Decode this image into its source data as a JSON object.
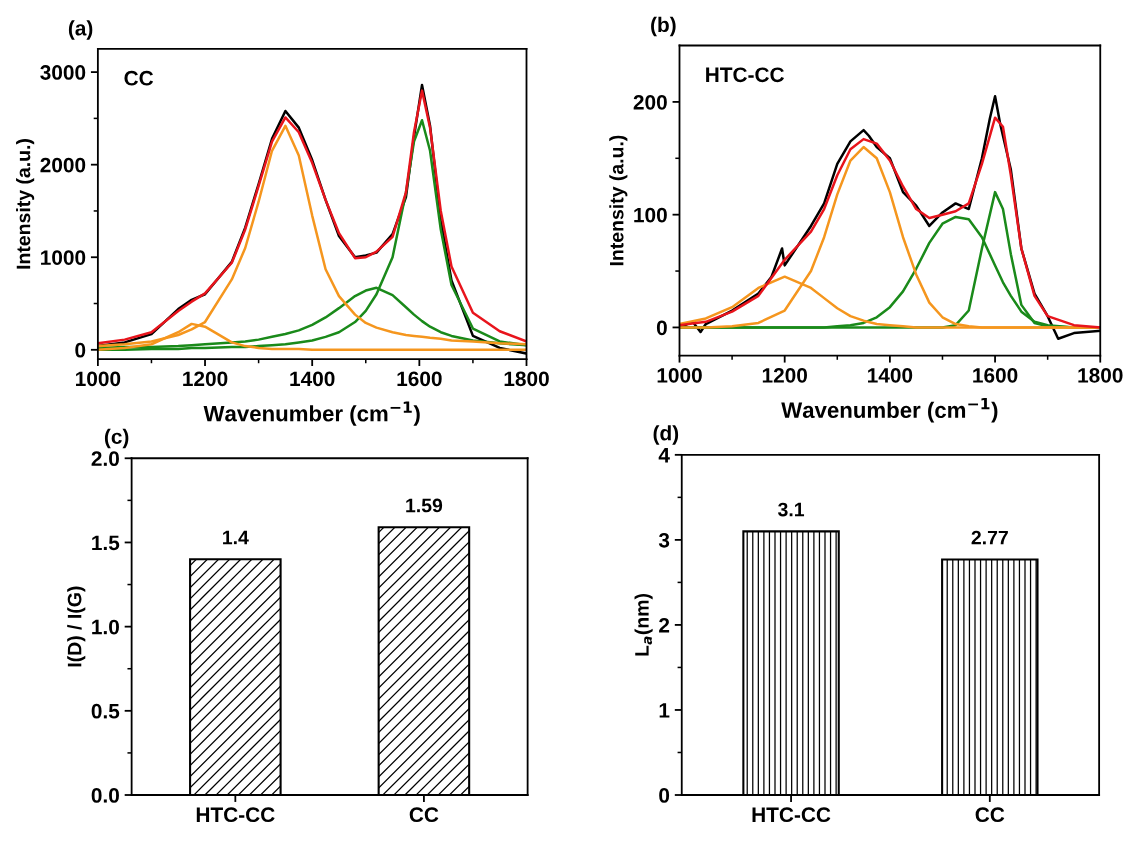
{
  "chart_data": [
    {
      "type": "line",
      "title": "(a)",
      "xlabel": "Wavenumber (cm$^{−1}$)",
      "ylabel": "Intensity (a.u.)",
      "annotations": [
        "CC"
      ],
      "xlim": [
        1000,
        1800
      ],
      "xticks": [
        1000,
        {
          "value": 1100,
          "label": null
        },
        1200,
        {
          "value": 1300,
          "label": null
        },
        1400,
        {
          "value": 1500,
          "label": null
        },
        1600,
        {
          "value": 1700,
          "label": null
        },
        1800
      ],
      "ylim": [
        -100,
        3250
      ],
      "yticks": [
        0,
        {
          "value": 500,
          "label": null
        },
        1000,
        {
          "value": 1500,
          "label": null
        },
        2000,
        {
          "value": 2500,
          "label": null
        },
        3000
      ],
      "x": [
        1000,
        1050,
        1100,
        1150,
        1175,
        1200,
        1250,
        1275,
        1300,
        1325,
        1350,
        1375,
        1400,
        1425,
        1450,
        1480,
        1500,
        1520,
        1550,
        1575,
        1590,
        1605,
        1620,
        1640,
        1660,
        1700,
        1750,
        1800
      ],
      "series": [
        {
          "color": "#000000",
          "values": [
            40,
            80,
            170,
            440,
            540,
            600,
            950,
            1320,
            1790,
            2280,
            2580,
            2400,
            2050,
            1620,
            1230,
            1000,
            1020,
            1050,
            1250,
            1650,
            2300,
            2860,
            2420,
            1400,
            750,
            150,
            20,
            -40
          ]
        },
        {
          "color": "#1a8a1a",
          "values": [
            0,
            0,
            10,
            10,
            20,
            20,
            30,
            30,
            40,
            50,
            60,
            80,
            100,
            140,
            190,
            300,
            420,
            600,
            1000,
            1700,
            2250,
            2480,
            2150,
            1300,
            700,
            230,
            90,
            50
          ]
        },
        {
          "color": "#1a8a1a",
          "values": [
            20,
            30,
            30,
            40,
            50,
            60,
            80,
            90,
            110,
            140,
            170,
            210,
            270,
            350,
            450,
            580,
            640,
            670,
            590,
            460,
            380,
            310,
            250,
            190,
            150,
            100,
            70,
            50
          ]
        },
        {
          "color": "#f5961e",
          "values": [
            40,
            60,
            90,
            160,
            220,
            300,
            760,
            1100,
            1600,
            2150,
            2420,
            2100,
            1450,
            870,
            580,
            380,
            290,
            240,
            190,
            160,
            150,
            140,
            130,
            120,
            100,
            90,
            70,
            60
          ]
        },
        {
          "color": "#f5961e",
          "values": [
            0,
            20,
            60,
            190,
            280,
            250,
            80,
            40,
            20,
            10,
            10,
            10,
            0,
            0,
            0,
            0,
            0,
            0,
            0,
            0,
            0,
            0,
            0,
            0,
            0,
            0,
            0,
            0
          ]
        },
        {
          "color": "#e8141c",
          "values": [
            70,
            110,
            190,
            420,
            520,
            610,
            940,
            1300,
            1770,
            2250,
            2510,
            2350,
            2020,
            1620,
            1260,
            990,
            1000,
            1060,
            1220,
            1700,
            2350,
            2800,
            2400,
            1500,
            900,
            400,
            200,
            90
          ]
        }
      ]
    },
    {
      "type": "line",
      "title": "(b)",
      "xlabel": "Wavenumber (cm$^{−1}$)",
      "ylabel": "Intensity (a.u.)",
      "annotations": [
        "HTC-CC"
      ],
      "xlim": [
        1000,
        1800
      ],
      "xticks": [
        1000,
        {
          "value": 1100,
          "label": null
        },
        1200,
        {
          "value": 1300,
          "label": null
        },
        1400,
        {
          "value": 1500,
          "label": null
        },
        1600,
        {
          "value": 1700,
          "label": null
        },
        1800
      ],
      "ylim": [
        -25,
        250
      ],
      "yticks": [
        0,
        {
          "value": 50,
          "label": null
        },
        100,
        {
          "value": 150,
          "label": null
        },
        200
      ],
      "x": [
        1000,
        1050,
        1100,
        1150,
        1200,
        1250,
        1275,
        1300,
        1325,
        1350,
        1375,
        1400,
        1425,
        1450,
        1475,
        1500,
        1525,
        1550,
        1575,
        1600,
        1615,
        1630,
        1650,
        1675,
        1700,
        1750,
        1800
      ],
      "series": [
        {
          "color": "#000000",
          "x": [
            1000,
            1025,
            1040,
            1050,
            1100,
            1150,
            1175,
            1195,
            1200,
            1250,
            1275,
            1300,
            1325,
            1350,
            1360,
            1375,
            1400,
            1425,
            1450,
            1475,
            1500,
            1525,
            1550,
            1575,
            1590,
            1600,
            1610,
            1630,
            1650,
            1675,
            1700,
            1720,
            1750,
            1800
          ],
          "values": [
            0,
            5,
            -4,
            3,
            15,
            30,
            45,
            70,
            55,
            90,
            110,
            145,
            165,
            175,
            170,
            160,
            150,
            120,
            108,
            90,
            102,
            110,
            105,
            150,
            185,
            205,
            180,
            140,
            70,
            30,
            10,
            -10,
            -5,
            -3
          ]
        },
        {
          "color": "#1a8a1a",
          "values": [
            0,
            0,
            0,
            0,
            0,
            0,
            0,
            1,
            2,
            4,
            9,
            18,
            32,
            52,
            75,
            92,
            98,
            96,
            80,
            55,
            40,
            28,
            14,
            5,
            2,
            0,
            0
          ]
        },
        {
          "color": "#1a8a1a",
          "values": [
            0,
            0,
            0,
            0,
            0,
            0,
            0,
            0,
            0,
            0,
            0,
            0,
            0,
            0,
            0,
            0,
            2,
            15,
            70,
            120,
            105,
            65,
            20,
            4,
            1,
            0,
            0
          ]
        },
        {
          "color": "#f5961e",
          "values": [
            0,
            0,
            1,
            4,
            15,
            50,
            80,
            118,
            148,
            160,
            150,
            120,
            80,
            47,
            22,
            9,
            3,
            1,
            0,
            0,
            0,
            0,
            0,
            0,
            0,
            0,
            0
          ]
        },
        {
          "color": "#f5961e",
          "values": [
            3,
            8,
            18,
            35,
            45,
            35,
            26,
            17,
            10,
            6,
            3,
            2,
            1,
            0,
            0,
            0,
            0,
            0,
            0,
            0,
            0,
            0,
            0,
            0,
            0,
            0,
            0
          ]
        },
        {
          "color": "#e8141c",
          "values": [
            2,
            5,
            14,
            28,
            60,
            85,
            105,
            135,
            158,
            167,
            163,
            148,
            125,
            105,
            97,
            100,
            103,
            110,
            145,
            186,
            178,
            135,
            70,
            28,
            10,
            2,
            0
          ]
        }
      ]
    },
    {
      "type": "bar",
      "title": "(c)",
      "ylabel": "I(D) / I(G)",
      "categories": [
        "HTC-CC",
        "CC"
      ],
      "values": [
        1.4,
        1.59
      ],
      "color": "#000000",
      "data_labels": true,
      "ylim": [
        0,
        2
      ],
      "yticks": [
        {
          "value": 0,
          "label": "0.0"
        },
        {
          "value": 0.25,
          "label": null
        },
        0.5,
        {
          "value": 0.75,
          "label": null
        },
        {
          "value": 1,
          "label": "1.0"
        },
        {
          "value": 1.25,
          "label": null
        },
        1.5,
        {
          "value": 1.75,
          "label": null
        },
        {
          "value": 2,
          "label": "2.0"
        }
      ]
    },
    {
      "type": "bar",
      "title": "(d)",
      "ylabel": "L$_{a}$(nm)",
      "categories": [
        "HTC-CC",
        "CC"
      ],
      "values": [
        3.1,
        2.77
      ],
      "color": "#000000",
      "data_labels": true,
      "ylim": [
        0,
        4
      ],
      "yticks": [
        0,
        {
          "value": 0.5,
          "label": null
        },
        1,
        {
          "value": 1.5,
          "label": null
        },
        2,
        {
          "value": 2.5,
          "label": null
        },
        3,
        {
          "value": 3.5,
          "label": null
        },
        4
      ]
    }
  ]
}
